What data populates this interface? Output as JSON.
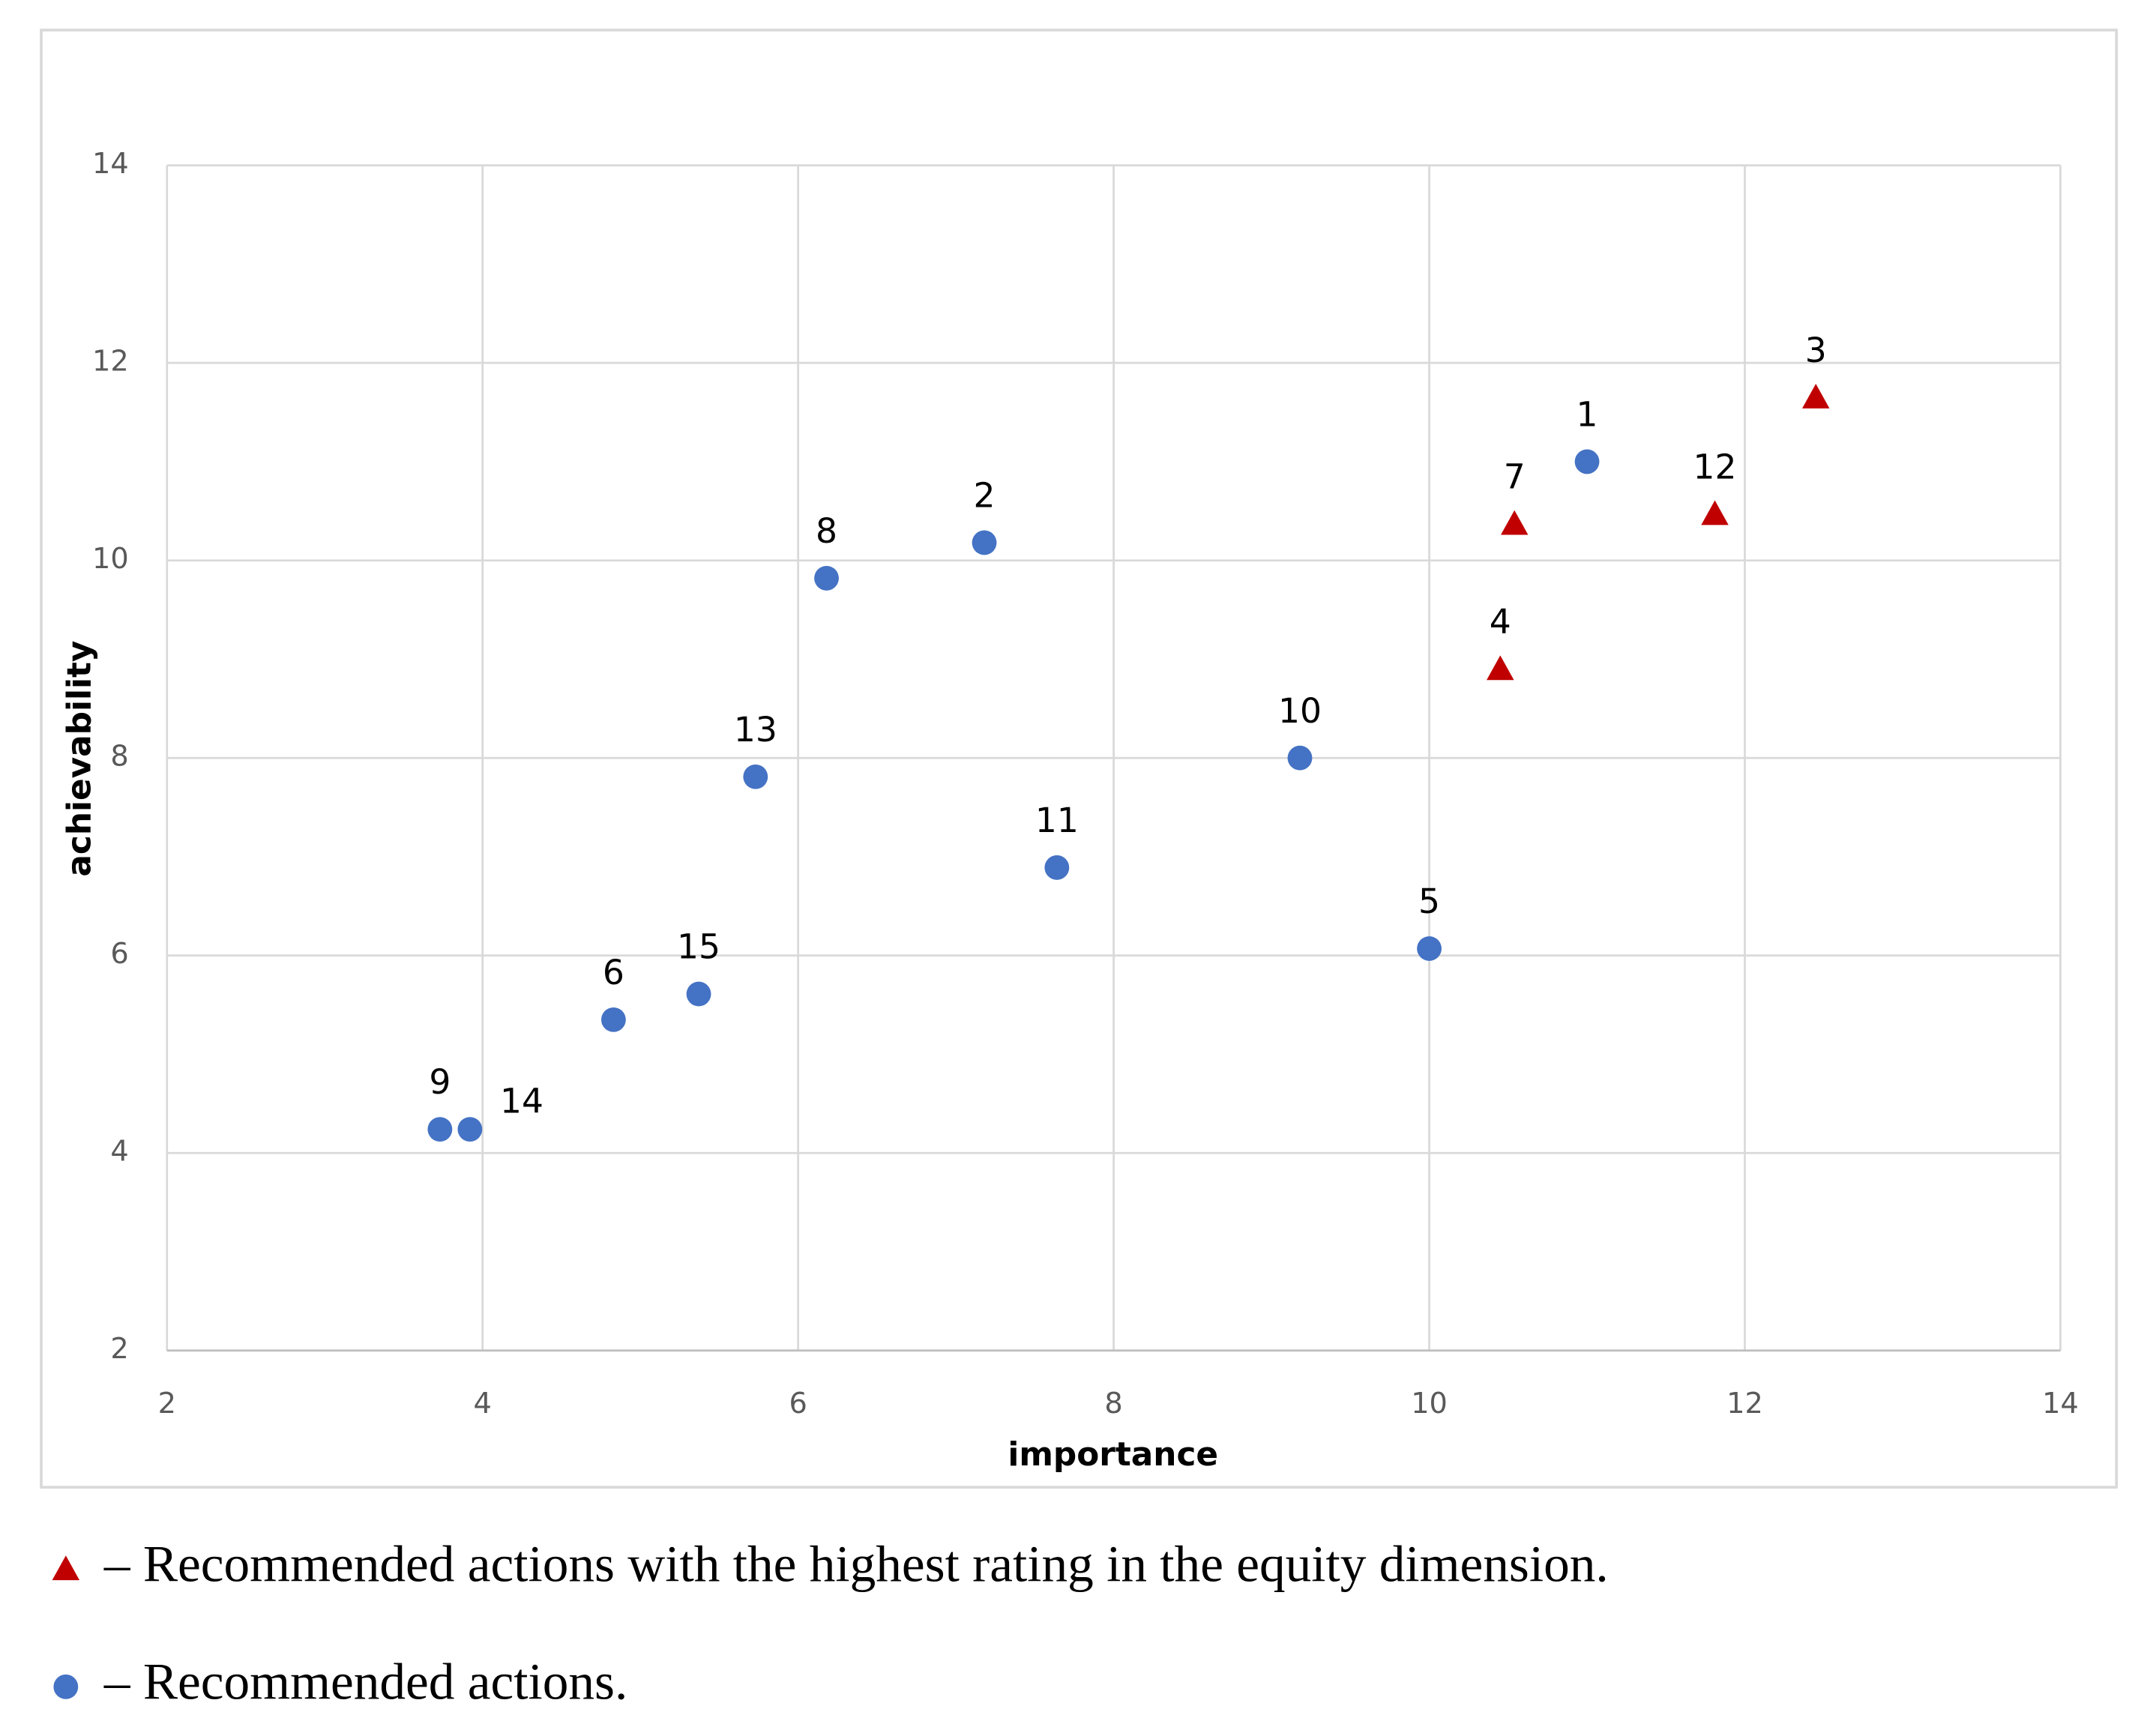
{
  "chart_data": {
    "type": "scatter",
    "x_label": "importance",
    "y_label": "achievability",
    "xlim": [
      2,
      14
    ],
    "xticks": [
      2,
      4,
      6,
      8,
      10,
      12,
      14
    ],
    "ylim": [
      2,
      14
    ],
    "yticks": [
      2,
      4,
      6,
      8,
      10,
      12,
      14
    ],
    "grid": true,
    "series": [
      {
        "name": "– Recommended actions with the highest rating in the equity dimension.",
        "color": "#c00000",
        "marker": "triangle",
        "labels": [
          "3",
          "4",
          "7",
          "12"
        ],
        "x": [
          12.45,
          10.45,
          10.54,
          11.81
        ],
        "values": [
          11.65,
          8.9,
          10.37,
          10.47
        ]
      },
      {
        "name": "– Recommended actions.",
        "color": "#4472c4",
        "marker": "circle",
        "labels": [
          "1",
          "2",
          "5",
          "6",
          "8",
          "9",
          "10",
          "11",
          "13",
          "14",
          "15"
        ],
        "x": [
          11.0,
          7.18,
          10.0,
          4.83,
          6.18,
          3.73,
          9.18,
          7.64,
          5.73,
          3.92,
          5.37
        ],
        "values": [
          11.0,
          10.18,
          6.07,
          5.35,
          9.82,
          4.24,
          8.0,
          6.89,
          7.81,
          4.24,
          5.61
        ]
      }
    ]
  }
}
